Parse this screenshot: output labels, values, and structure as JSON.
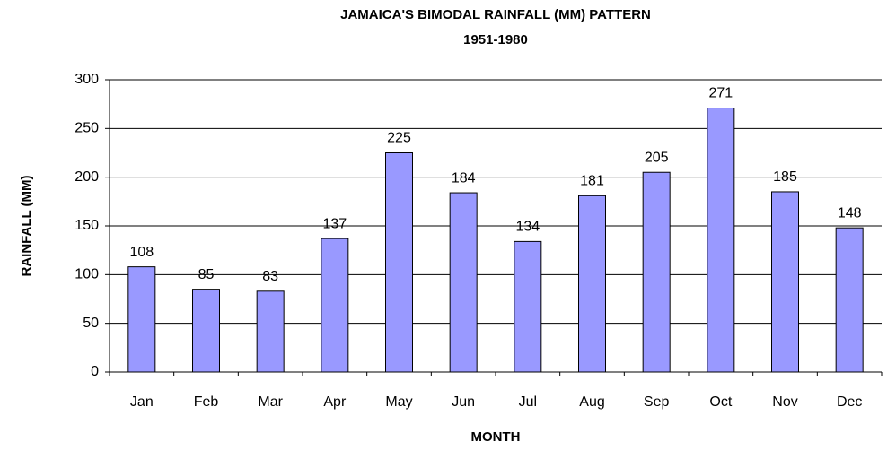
{
  "chart_data": {
    "type": "bar",
    "title": "JAMAICA'S BIMODAL RAINFALL (MM) PATTERN",
    "subtitle": "1951-1980",
    "x_label": "MONTH",
    "y_label": "RAINFALL (MM)",
    "categories": [
      "Jan",
      "Feb",
      "Mar",
      "Apr",
      "May",
      "Jun",
      "Jul",
      "Aug",
      "Sep",
      "Oct",
      "Nov",
      "Dec"
    ],
    "values": [
      108,
      85,
      83,
      137,
      225,
      184,
      134,
      181,
      205,
      271,
      185,
      148
    ],
    "color": "#9999ff",
    "ylim": [
      0,
      300
    ],
    "yticks": [
      0,
      50,
      100,
      150,
      200,
      250,
      300
    ],
    "grid": true
  }
}
